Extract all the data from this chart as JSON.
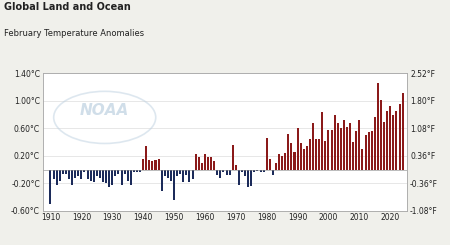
{
  "title1": "Global Land and Ocean",
  "title2": "February Temperature Anomalies",
  "ylim_left": [
    -0.6,
    1.4
  ],
  "ylim_right": [
    -1.08,
    2.52
  ],
  "yticks_left": [
    -0.6,
    -0.2,
    0.2,
    0.6,
    1.0,
    1.4
  ],
  "ytick_labels_left": [
    "-0.60°C",
    "-0.20°C",
    "0.20°C",
    "0.60°C",
    "1.00°C",
    "1.40°C"
  ],
  "ytick_labels_right": [
    "-1.08°F",
    "-0.36°F",
    "0.36°F",
    "1.08°F",
    "1.80°F",
    "2.52°F"
  ],
  "yticks_right": [
    -1.08,
    -0.36,
    0.36,
    1.08,
    1.8,
    2.52
  ],
  "xticks": [
    1910,
    1920,
    1930,
    1940,
    1950,
    1960,
    1970,
    1980,
    1990,
    2000,
    2010,
    2020
  ],
  "background_color": "#f0f0eb",
  "plot_bg_color": "#ffffff",
  "years": [
    1910,
    1911,
    1912,
    1913,
    1914,
    1915,
    1916,
    1917,
    1918,
    1919,
    1920,
    1921,
    1922,
    1923,
    1924,
    1925,
    1926,
    1927,
    1928,
    1929,
    1930,
    1931,
    1932,
    1933,
    1934,
    1935,
    1936,
    1937,
    1938,
    1939,
    1940,
    1941,
    1942,
    1943,
    1944,
    1945,
    1946,
    1947,
    1948,
    1949,
    1950,
    1951,
    1952,
    1953,
    1954,
    1955,
    1956,
    1957,
    1958,
    1959,
    1960,
    1961,
    1962,
    1963,
    1964,
    1965,
    1966,
    1967,
    1968,
    1969,
    1970,
    1971,
    1972,
    1973,
    1974,
    1975,
    1976,
    1977,
    1978,
    1979,
    1980,
    1981,
    1982,
    1983,
    1984,
    1985,
    1986,
    1987,
    1988,
    1989,
    1990,
    1991,
    1992,
    1993,
    1994,
    1995,
    1996,
    1997,
    1998,
    1999,
    2000,
    2001,
    2002,
    2003,
    2004,
    2005,
    2006,
    2007,
    2008,
    2009,
    2010,
    2011,
    2012,
    2013,
    2014,
    2015,
    2016,
    2017,
    2018,
    2019,
    2020,
    2021,
    2022,
    2023,
    2024
  ],
  "anomalies": [
    -0.5,
    -0.14,
    -0.22,
    -0.16,
    -0.06,
    -0.06,
    -0.14,
    -0.22,
    -0.12,
    -0.1,
    -0.14,
    -0.04,
    -0.14,
    -0.16,
    -0.18,
    -0.1,
    -0.12,
    -0.18,
    -0.2,
    -0.26,
    -0.22,
    -0.1,
    -0.06,
    -0.22,
    -0.06,
    -0.16,
    -0.22,
    -0.04,
    -0.04,
    -0.04,
    0.16,
    0.34,
    0.14,
    0.12,
    0.14,
    0.16,
    -0.32,
    -0.1,
    -0.12,
    -0.16,
    -0.44,
    -0.1,
    -0.06,
    -0.18,
    -0.08,
    -0.18,
    -0.14,
    0.22,
    0.18,
    0.1,
    0.22,
    0.18,
    0.18,
    0.12,
    -0.08,
    -0.12,
    -0.04,
    -0.08,
    -0.08,
    0.36,
    0.06,
    -0.22,
    -0.04,
    -0.1,
    -0.26,
    -0.24,
    -0.04,
    -0.02,
    -0.04,
    -0.04,
    0.46,
    0.16,
    -0.08,
    0.1,
    0.22,
    0.2,
    0.24,
    0.52,
    0.38,
    0.26,
    0.6,
    0.38,
    0.3,
    0.34,
    0.44,
    0.68,
    0.44,
    0.44,
    0.84,
    0.42,
    0.58,
    0.58,
    0.8,
    0.68,
    0.6,
    0.72,
    0.62,
    0.68,
    0.4,
    0.56,
    0.72,
    0.3,
    0.5,
    0.54,
    0.56,
    0.76,
    1.26,
    1.02,
    0.7,
    0.86,
    0.92,
    0.8,
    0.86,
    0.96,
    1.12
  ],
  "color_positive": "#8B1A1A",
  "color_negative": "#1C2B5A",
  "grid_color": "#dddddd",
  "text_color": "#222222",
  "noaa_color": "#bdd0e0"
}
